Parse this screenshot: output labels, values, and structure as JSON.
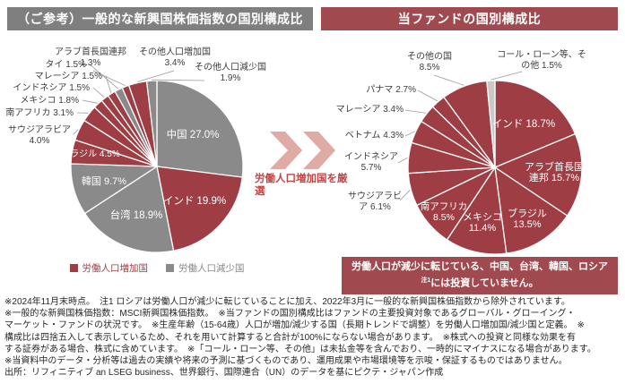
{
  "page": {
    "left_header": "（ご参考）一般的な新興国株価指数の国別構成比",
    "right_header": "当ファンドの国別構成比",
    "arrow_text": "労働人口増加国を厳選",
    "legend": [
      {
        "label": "労働人口増加国",
        "color": "#9E3E44"
      },
      {
        "label": "労働人口減少国",
        "color": "#8A8A8A"
      }
    ],
    "note": {
      "pre": "労働人口が減少に転じている、中国、台湾、韓国、ロシア",
      "sup": "注1",
      "post": "には投資していません。"
    },
    "footnotes": [
      "※2024年11月末時点。　注1 ロシアは労働人口が減少に転じていることに加え、2022年3月に一般的な新興国株価指数から除外されています。",
      "※一般的な新興国株価指数：MSCI新興国株価指数。　※当ファンドの国別構成比はファンドの主要投資対象であるグローバル・グローイング・",
      "マーケット・ファンドの状況です。　※生産年齢（15-64歳）人口が増加/減少する国（長期トレンドで調整）を労働人口増加国/減少国と定義。　※",
      "構成比は四捨五入して表示しているため、それを用いて計算すると合計が100%にならない場合があります。　※株式への投資と同様な効果を有",
      "する証券がある場合、株式に含めています。　※「コール・ローン等、その他」は未払金等を含んでおり、一時的にマイナスになる場合があります。",
      "※当資料中のデータ・分析等は過去の実績や将来の予測に基づくものであり、運用成果や市場環境等を示唆・保証するものではありません。"
    ],
    "source": "出所：リフィニティブ an LSEG business、世界銀行、国際連合（UN）のデータを基にピクテ・ジャパン作成"
  },
  "colors": {
    "increase_red": "#9E3E44",
    "decrease_gray": "#8A8A8A",
    "cash_gray": "#C9C9C9",
    "header_gray": "#7F7F7F",
    "header_red": "#A04A4F",
    "arrow_salmon": "#E0ABA4",
    "arrow_text_red": "#C24444"
  },
  "chart_data": [
    {
      "type": "pie",
      "title": "（ご参考）一般的な新興国株価指数の国別構成比",
      "unit": "%",
      "start_angle": "12時位置から時計回り",
      "legend": [
        "労働人口増加国",
        "労働人口減少国"
      ],
      "slices": [
        {
          "name": "中国",
          "value": 27.0,
          "group": "労働人口減少国",
          "color": "#8A8A8A"
        },
        {
          "name": "インド",
          "value": 19.9,
          "group": "労働人口増加国",
          "color": "#9E3E44"
        },
        {
          "name": "台湾",
          "value": 18.9,
          "group": "労働人口減少国",
          "color": "#8A8A8A"
        },
        {
          "name": "韓国",
          "value": 9.7,
          "group": "労働人口減少国",
          "color": "#8A8A8A"
        },
        {
          "name": "ブラジル",
          "value": 4.5,
          "group": "労働人口増加国",
          "color": "#9E3E44"
        },
        {
          "name": "サウジアラビア",
          "value": 4.0,
          "group": "労働人口増加国",
          "color": "#9E3E44"
        },
        {
          "name": "南アフリカ",
          "value": 3.1,
          "group": "労働人口増加国",
          "color": "#9E3E44"
        },
        {
          "name": "メキシコ",
          "value": 1.8,
          "group": "労働人口増加国",
          "color": "#9E3E44"
        },
        {
          "name": "インドネシア",
          "value": 1.5,
          "group": "労働人口増加国",
          "color": "#9E3E44"
        },
        {
          "name": "マレーシア",
          "value": 1.5,
          "group": "労働人口増加国",
          "color": "#9E3E44"
        },
        {
          "name": "タイ",
          "value": 1.5,
          "group": "労働人口減少国",
          "color": "#8A8A8A"
        },
        {
          "name": "アラブ首長国連邦",
          "value": 1.3,
          "group": "労働人口増加国",
          "color": "#9E3E44"
        },
        {
          "name": "その他人口増加国",
          "value": 3.4,
          "group": "労働人口増加国",
          "color": "#9E3E44"
        },
        {
          "name": "その他人口減少国",
          "value": 1.9,
          "group": "労働人口減少国",
          "color": "#8A8A8A"
        }
      ]
    },
    {
      "type": "pie",
      "title": "当ファンドの国別構成比",
      "unit": "%",
      "start_angle": "12時位置から時計回り",
      "slices": [
        {
          "name": "インド",
          "value": 18.7,
          "group": "労働人口増加国",
          "color": "#9E3E44"
        },
        {
          "name": "アラブ首長国連邦",
          "value": 15.7,
          "group": "労働人口増加国",
          "color": "#9E3E44"
        },
        {
          "name": "ブラジル",
          "value": 13.5,
          "group": "労働人口増加国",
          "color": "#9E3E44"
        },
        {
          "name": "メキシコ",
          "value": 11.4,
          "group": "労働人口増加国",
          "color": "#9E3E44"
        },
        {
          "name": "南アフリカ",
          "value": 8.5,
          "group": "労働人口増加国",
          "color": "#9E3E44"
        },
        {
          "name": "サウジアラビア",
          "value": 6.1,
          "group": "労働人口増加国",
          "color": "#9E3E44"
        },
        {
          "name": "インドネシア",
          "value": 5.7,
          "group": "労働人口増加国",
          "color": "#9E3E44"
        },
        {
          "name": "ベトナム",
          "value": 4.3,
          "group": "労働人口増加国",
          "color": "#9E3E44"
        },
        {
          "name": "マレーシア",
          "value": 3.4,
          "group": "労働人口増加国",
          "color": "#9E3E44"
        },
        {
          "name": "パナマ",
          "value": 2.7,
          "group": "労働人口増加国",
          "color": "#9E3E44"
        },
        {
          "name": "その他の国",
          "value": 8.5,
          "group": "労働人口増加国",
          "color": "#9E3E44"
        },
        {
          "name": "コール・ローン等、その他",
          "value": 1.5,
          "group": "その他",
          "color": "#C9C9C9"
        }
      ]
    }
  ]
}
